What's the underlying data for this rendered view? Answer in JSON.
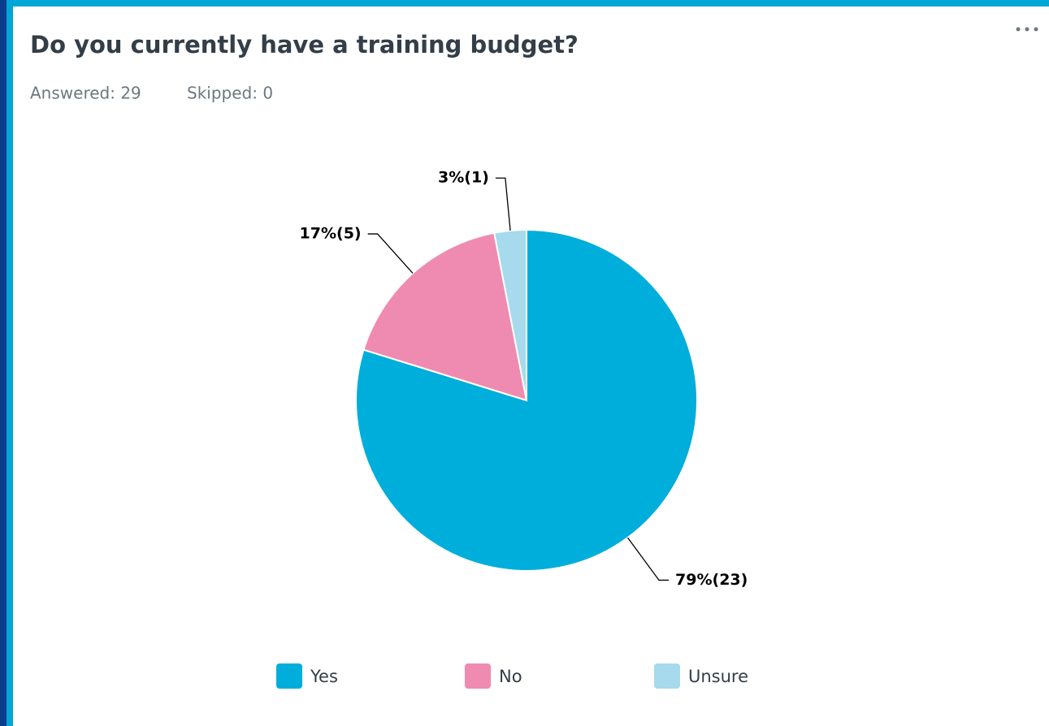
{
  "chart_data": {
    "type": "pie",
    "title": "Do you currently have a training budget?",
    "answered": "Answered: 29",
    "skipped": "Skipped: 0",
    "categories": [
      "Yes",
      "No",
      "Unsure"
    ],
    "values": [
      79,
      17,
      3
    ],
    "value_labels": [
      "79%(23)",
      "17%(5)",
      "3%(1)"
    ],
    "colors": [
      "#00aedb",
      "#ef8bb0",
      "#a6daec"
    ],
    "legend": "bottom"
  }
}
